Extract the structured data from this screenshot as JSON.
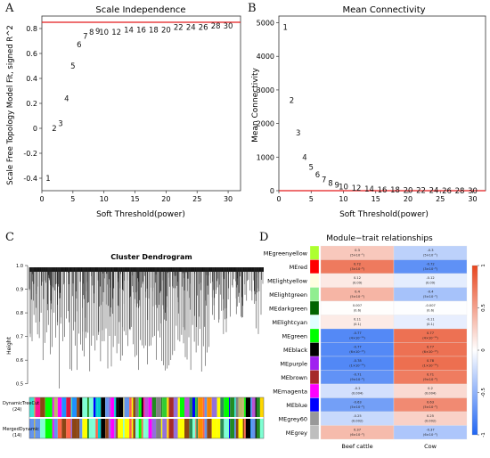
{
  "chart_data": [
    {
      "panel_label": "A",
      "type": "scatter",
      "title": "Scale Independence",
      "xlabel": "Soft Threshold(power)",
      "ylabel": "Scale Free Topology Model Fit, signed R^2",
      "xlim": [
        0,
        32
      ],
      "ylim": [
        -0.5,
        0.9
      ],
      "xticks": [
        0,
        5,
        10,
        15,
        20,
        25,
        30
      ],
      "yticks": [
        -0.4,
        -0.2,
        0,
        0.2,
        0.4,
        0.6,
        0.8
      ],
      "hline": 0.85,
      "hline_color": "#e41a1c",
      "points": [
        {
          "label": "1",
          "x": 1,
          "y": -0.4
        },
        {
          "label": "2",
          "x": 2,
          "y": 0.0
        },
        {
          "label": "3",
          "x": 3,
          "y": 0.04
        },
        {
          "label": "4",
          "x": 4,
          "y": 0.24
        },
        {
          "label": "5",
          "x": 5,
          "y": 0.5
        },
        {
          "label": "6",
          "x": 6,
          "y": 0.67
        },
        {
          "label": "7",
          "x": 7,
          "y": 0.74
        },
        {
          "label": "8",
          "x": 8,
          "y": 0.77
        },
        {
          "label": "9",
          "x": 9,
          "y": 0.78
        },
        {
          "label": "10",
          "x": 10,
          "y": 0.77
        },
        {
          "label": "12",
          "x": 12,
          "y": 0.77
        },
        {
          "label": "14",
          "x": 14,
          "y": 0.79
        },
        {
          "label": "16",
          "x": 16,
          "y": 0.79
        },
        {
          "label": "18",
          "x": 18,
          "y": 0.79
        },
        {
          "label": "20",
          "x": 20,
          "y": 0.79
        },
        {
          "label": "22",
          "x": 22,
          "y": 0.81
        },
        {
          "label": "24",
          "x": 24,
          "y": 0.81
        },
        {
          "label": "26",
          "x": 26,
          "y": 0.81
        },
        {
          "label": "28",
          "x": 28,
          "y": 0.82
        },
        {
          "label": "30",
          "x": 30,
          "y": 0.82
        }
      ]
    },
    {
      "panel_label": "B",
      "type": "scatter",
      "title": "Mean Connectivity",
      "xlabel": "Soft Threshold(power)",
      "ylabel": "Mean Connectivity",
      "xlim": [
        0,
        32
      ],
      "ylim": [
        0,
        5200
      ],
      "xticks": [
        0,
        5,
        10,
        15,
        20,
        25,
        30
      ],
      "yticks": [
        0,
        1000,
        2000,
        3000,
        4000,
        5000
      ],
      "hline": 0,
      "hline_color": "#e41a1c",
      "points": [
        {
          "label": "1",
          "x": 1,
          "y": 4870
        },
        {
          "label": "2",
          "x": 2,
          "y": 2690
        },
        {
          "label": "3",
          "x": 3,
          "y": 1720
        },
        {
          "label": "4",
          "x": 4,
          "y": 1000
        },
        {
          "label": "5",
          "x": 5,
          "y": 700
        },
        {
          "label": "6",
          "x": 6,
          "y": 480
        },
        {
          "label": "7",
          "x": 7,
          "y": 330
        },
        {
          "label": "8",
          "x": 8,
          "y": 230
        },
        {
          "label": "9",
          "x": 9,
          "y": 170
        },
        {
          "label": "10",
          "x": 10,
          "y": 120
        },
        {
          "label": "12",
          "x": 12,
          "y": 80
        },
        {
          "label": "14",
          "x": 14,
          "y": 50
        },
        {
          "label": "16",
          "x": 16,
          "y": 30
        },
        {
          "label": "18",
          "x": 18,
          "y": 20
        },
        {
          "label": "20",
          "x": 20,
          "y": 15
        },
        {
          "label": "22",
          "x": 22,
          "y": 10
        },
        {
          "label": "24",
          "x": 24,
          "y": 8
        },
        {
          "label": "26",
          "x": 26,
          "y": 6
        },
        {
          "label": "28",
          "x": 28,
          "y": 5
        },
        {
          "label": "30",
          "x": 30,
          "y": 4
        }
      ]
    },
    {
      "panel_label": "C",
      "type": "dendrogram",
      "title": "Cluster Dendrogram",
      "ylabel": "Height",
      "yticks": [
        0.5,
        0.6,
        0.7,
        0.8,
        0.9,
        1.0
      ],
      "ylim": [
        0.45,
        1.0
      ],
      "color_bars": [
        {
          "label": "DynamicTreeCut",
          "sub": "(24)"
        },
        {
          "label": "MergedDynamic",
          "sub": "(14)"
        }
      ]
    },
    {
      "panel_label": "D",
      "type": "heatmap",
      "title": "Module−trait relationships",
      "columns": [
        "Beef cattle",
        "Cow"
      ],
      "rows": [
        {
          "module": "MEgreenyellow",
          "color": "#adff2f",
          "cells": [
            {
              "r": "0.3",
              "p": "(5×10⁻²)"
            },
            {
              "r": "-0.3",
              "p": "(5×10⁻²)"
            }
          ]
        },
        {
          "module": "MEred",
          "color": "#ff0000",
          "cells": [
            {
              "r": "0.72",
              "p": "(3×10⁻⁸)"
            },
            {
              "r": "-0.72",
              "p": "(3×10⁻⁸)"
            }
          ]
        },
        {
          "module": "MElightyellow",
          "color": "#ffffe0",
          "cells": [
            {
              "r": "0.12",
              "p": "(0.09)"
            },
            {
              "r": "-0.12",
              "p": "(0.09)"
            }
          ]
        },
        {
          "module": "MElightgreen",
          "color": "#90ee90",
          "cells": [
            {
              "r": "0.4",
              "p": "(5×10⁻³)"
            },
            {
              "r": "-0.4",
              "p": "(5×10⁻³)"
            }
          ]
        },
        {
          "module": "MEdarkgreen",
          "color": "#006400",
          "cells": [
            {
              "r": "0.007",
              "p": "(0.6)"
            },
            {
              "r": "-0.007",
              "p": "(0.6)"
            }
          ]
        },
        {
          "module": "MElightcyan",
          "color": "#e0ffff",
          "cells": [
            {
              "r": "0.11",
              "p": "(0.1)"
            },
            {
              "r": "-0.11",
              "p": "(0.1)"
            }
          ]
        },
        {
          "module": "MEgreen",
          "color": "#00ff00",
          "cells": [
            {
              "r": "-0.77",
              "p": "(4×10⁻¹⁰)"
            },
            {
              "r": "0.77",
              "p": "(4×10⁻¹⁰)"
            }
          ]
        },
        {
          "module": "MEblack",
          "color": "#000000",
          "cells": [
            {
              "r": "-0.77",
              "p": "(6×10⁻¹⁰)"
            },
            {
              "r": "0.77",
              "p": "(6×10⁻¹⁰)"
            }
          ]
        },
        {
          "module": "MEpurple",
          "color": "#a020f0",
          "cells": [
            {
              "r": "-0.78",
              "p": "(1×10⁻¹⁰)"
            },
            {
              "r": "0.78",
              "p": "(1×10⁻¹⁰)"
            }
          ]
        },
        {
          "module": "MEbrown",
          "color": "#a52a2a",
          "cells": [
            {
              "r": "-0.71",
              "p": "(9×10⁻⁸)"
            },
            {
              "r": "0.71",
              "p": "(9×10⁻⁸)"
            }
          ]
        },
        {
          "module": "MEmagenta",
          "color": "#ff00ff",
          "cells": [
            {
              "r": "-0.2",
              "p": "(0.004)"
            },
            {
              "r": "0.2",
              "p": "(0.004)"
            }
          ]
        },
        {
          "module": "MEblue",
          "color": "#0000ff",
          "cells": [
            {
              "r": "-0.63",
              "p": "(5×10⁻⁶)"
            },
            {
              "r": "0.63",
              "p": "(5×10⁻⁶)"
            }
          ]
        },
        {
          "module": "MEgrey60",
          "color": "#999999",
          "cells": [
            {
              "r": "-0.25",
              "p": "(0.002)"
            },
            {
              "r": "0.25",
              "p": "(0.002)"
            }
          ]
        },
        {
          "module": "MEgrey",
          "color": "#bebebe",
          "cells": [
            {
              "r": "0.37",
              "p": "(6×10⁻³)"
            },
            {
              "r": "-0.37",
              "p": "(6×10⁻³)"
            }
          ]
        }
      ],
      "values": [
        [
          0.3,
          -0.3
        ],
        [
          0.72,
          -0.72
        ],
        [
          0.12,
          -0.12
        ],
        [
          0.4,
          -0.4
        ],
        [
          0.007,
          -0.007
        ],
        [
          0.11,
          -0.11
        ],
        [
          -0.77,
          0.77
        ],
        [
          -0.77,
          0.77
        ],
        [
          -0.78,
          0.78
        ],
        [
          -0.71,
          0.71
        ],
        [
          -0.2,
          0.2
        ],
        [
          -0.63,
          0.63
        ],
        [
          -0.25,
          0.25
        ],
        [
          0.37,
          -0.37
        ]
      ],
      "colorbar": {
        "ticks": [
          "1",
          "0.5",
          "0",
          "-0.5",
          "-1"
        ],
        "tick_values": [
          1,
          0.5,
          0,
          -0.5,
          -1
        ],
        "low": "#2166f3",
        "mid": "#ffffff",
        "high": "#e8461f"
      }
    }
  ]
}
